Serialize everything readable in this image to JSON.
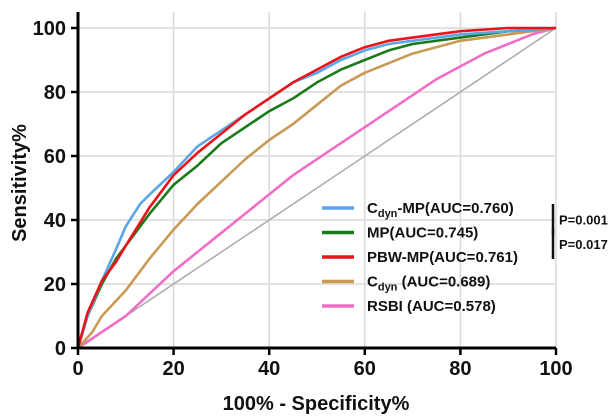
{
  "chart_data": {
    "type": "line",
    "title": "",
    "xlabel": "100% - Specificity%",
    "ylabel": "Sensitivity%",
    "xlim": [
      0,
      100
    ],
    "ylim": [
      0,
      100
    ],
    "xticks": [
      "0",
      "20",
      "40",
      "60",
      "80",
      "100"
    ],
    "yticks": [
      "0",
      "20",
      "40",
      "60",
      "80",
      "100"
    ],
    "grid": true,
    "legend_position": "bottom-right",
    "reference_line": {
      "x": [
        0,
        100
      ],
      "y": [
        0,
        100
      ],
      "color": "#aaaaaa"
    },
    "series": [
      {
        "name": "Cdyn-MP(AUC=0.760)",
        "name_parts": [
          "C",
          "dyn",
          "-MP(AUC=0.760)"
        ],
        "color": "#5aa6e8",
        "x": [
          0,
          2,
          5,
          8,
          10,
          13,
          15,
          20,
          25,
          30,
          35,
          40,
          45,
          50,
          55,
          60,
          65,
          70,
          80,
          90,
          100
        ],
        "y": [
          0,
          10,
          21,
          31,
          38,
          45,
          48,
          55,
          63,
          68,
          73,
          78,
          83,
          86,
          90,
          93,
          95,
          96,
          98,
          99,
          100
        ]
      },
      {
        "name": "MP(AUC=0.745)",
        "color": "#1a7a1a",
        "x": [
          0,
          2,
          5,
          8,
          10,
          15,
          20,
          25,
          30,
          35,
          40,
          45,
          50,
          55,
          60,
          65,
          70,
          80,
          90,
          100
        ],
        "y": [
          0,
          10,
          20,
          28,
          32,
          42,
          51,
          57,
          64,
          69,
          74,
          78,
          83,
          87,
          90,
          93,
          95,
          97,
          99,
          100
        ]
      },
      {
        "name": "PBW-MP(AUC=0.761)",
        "color": "#e8141a",
        "x": [
          0,
          2,
          5,
          8,
          10,
          15,
          20,
          25,
          30,
          35,
          40,
          45,
          50,
          55,
          60,
          65,
          70,
          80,
          90,
          100
        ],
        "y": [
          0,
          11,
          21,
          27,
          32,
          44,
          54,
          61,
          67,
          73,
          78,
          83,
          87,
          91,
          94,
          96,
          97,
          99,
          100,
          100
        ]
      },
      {
        "name": "Cdyn (AUC=0.689)",
        "name_parts": [
          "C",
          "dyn",
          " (AUC=0.689)"
        ],
        "color": "#c89a55",
        "x": [
          0,
          3,
          5,
          10,
          15,
          20,
          25,
          30,
          35,
          40,
          45,
          50,
          55,
          60,
          65,
          70,
          80,
          90,
          100
        ],
        "y": [
          0,
          5,
          10,
          18,
          28,
          37,
          45,
          52,
          59,
          65,
          70,
          76,
          82,
          86,
          89,
          92,
          96,
          98,
          100
        ]
      },
      {
        "name": "RSBI (AUC=0.578)",
        "color": "#f06ec8",
        "x": [
          0,
          5,
          10,
          15,
          20,
          25,
          30,
          35,
          40,
          45,
          50,
          55,
          60,
          65,
          70,
          75,
          80,
          85,
          90,
          95,
          100
        ],
        "y": [
          0,
          5,
          10,
          17,
          24,
          30,
          36,
          42,
          48,
          54,
          59,
          64,
          69,
          74,
          79,
          84,
          88,
          92,
          95,
          98,
          100
        ]
      }
    ],
    "annotations": [
      {
        "text": "P=0.001",
        "between": [
          "Cdyn-MP(AUC=0.760)",
          "MP(AUC=0.745)"
        ]
      },
      {
        "text": "P=0.017",
        "between": [
          "MP(AUC=0.745)",
          "PBW-MP(AUC=0.761)"
        ]
      }
    ]
  }
}
